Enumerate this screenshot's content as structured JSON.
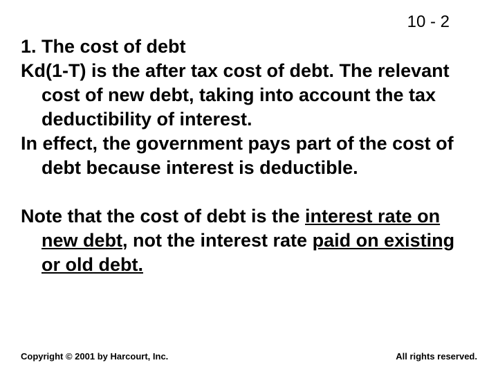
{
  "pageNumber": "10 - 2",
  "heading": "1. The cost of debt",
  "para1": "Kd(1-T) is the after tax cost of debt.  The relevant cost of new debt, taking into account the tax deductibility of interest.",
  "para2": "In effect, the government pays part of the cost of debt because interest is deductible.",
  "note_pre": "Note that the cost of debt is the ",
  "note_u1": "interest rate on new debt",
  "note_mid": ", not the interest rate ",
  "note_u2": "paid on existing or old debt.",
  "footerLeft": "Copyright © 2001 by Harcourt, Inc.",
  "footerRight": "All rights reserved."
}
